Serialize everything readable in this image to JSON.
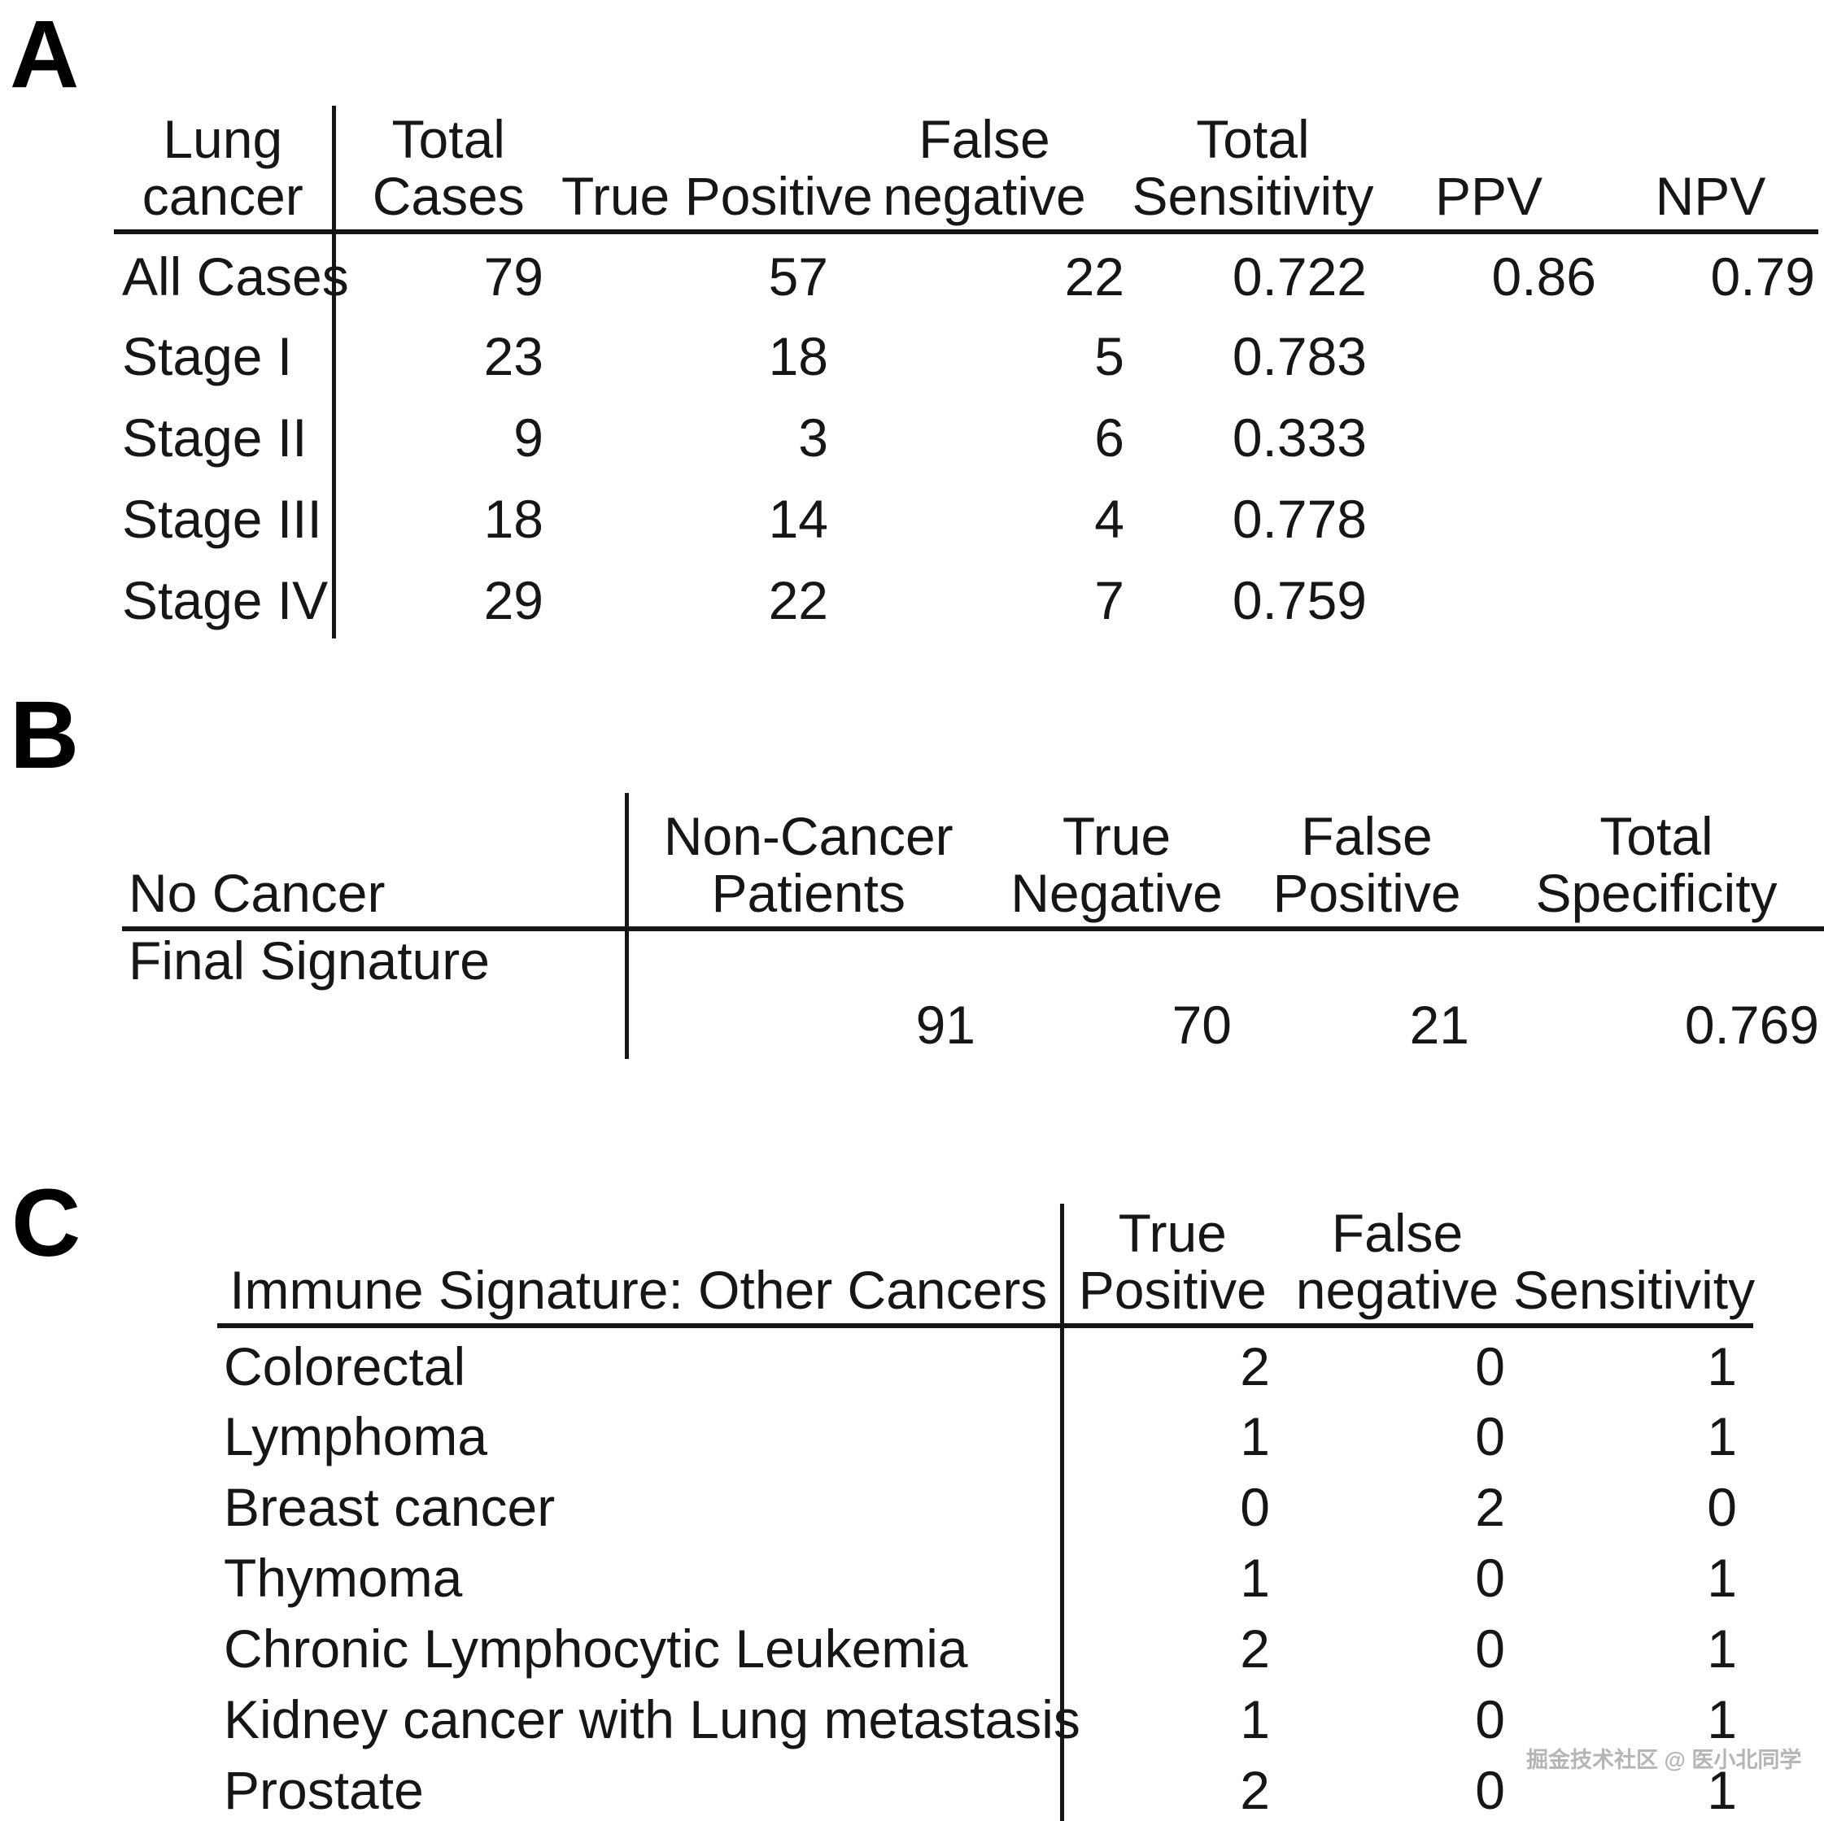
{
  "panel_a": {
    "label": "A",
    "header_line1": [
      "Lung",
      "Total",
      "",
      "False",
      "Total",
      "",
      ""
    ],
    "header_line2": [
      "cancer",
      "Cases",
      "True Positive",
      "negative",
      "Sensitivity",
      "PPV",
      "NPV"
    ],
    "rows": [
      [
        "All Cases",
        "79",
        "57",
        "22",
        "0.722",
        "0.86",
        "0.79"
      ],
      [
        "Stage I",
        "23",
        "18",
        "5",
        "0.783",
        "",
        ""
      ],
      [
        "Stage II",
        "9",
        "3",
        "6",
        "0.333",
        "",
        ""
      ],
      [
        "Stage III",
        "18",
        "14",
        "4",
        "0.778",
        "",
        ""
      ],
      [
        "Stage IV",
        "29",
        "22",
        "7",
        "0.759",
        "",
        ""
      ]
    ]
  },
  "panel_b": {
    "label": "B",
    "header_line1": [
      "",
      "Non-Cancer",
      "True",
      "False",
      "Total"
    ],
    "header_line2": [
      "No Cancer",
      "Patients",
      "Negative",
      "Positive",
      "Specificity"
    ],
    "row_label": "Final Signature",
    "values": [
      "91",
      "70",
      "21",
      "0.769"
    ]
  },
  "panel_c": {
    "label": "C",
    "header_line1": [
      "",
      "True",
      "False",
      ""
    ],
    "header_line2": [
      "Immune Signature: Other Cancers",
      "Positive",
      "negative",
      "Sensitivity"
    ],
    "rows": [
      [
        "Colorectal",
        "2",
        "0",
        "1"
      ],
      [
        "Lymphoma",
        "1",
        "0",
        "1"
      ],
      [
        "Breast cancer",
        "0",
        "2",
        "0"
      ],
      [
        "Thymoma",
        "1",
        "0",
        "1"
      ],
      [
        "Chronic Lymphocytic Leukemia",
        "2",
        "0",
        "1"
      ],
      [
        "Kidney cancer with Lung metastasis",
        "1",
        "0",
        "1"
      ],
      [
        "Prostate",
        "2",
        "0",
        "1"
      ]
    ]
  },
  "watermark": {
    "text": "掘金技术社区 @ 医小北同学",
    "color": "#b5b5b5"
  },
  "colors": {
    "text": "#161616",
    "rule": "#161616",
    "background": "#ffffff"
  }
}
